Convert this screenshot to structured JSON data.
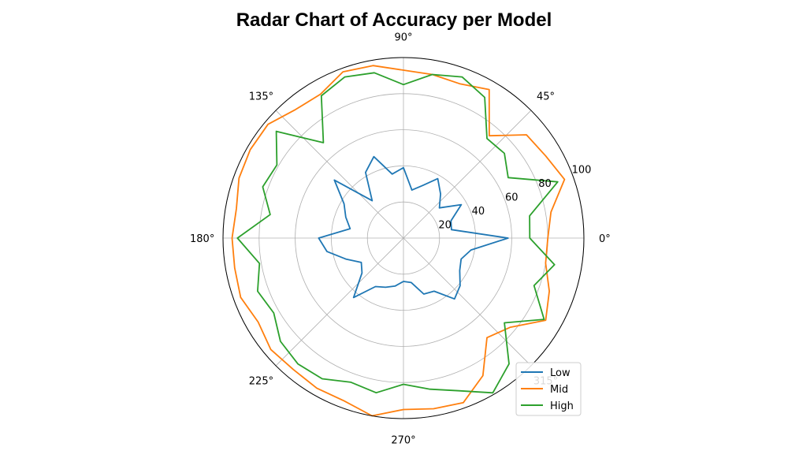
{
  "chart_data": {
    "type": "radar",
    "title": "Radar Chart of Accuracy per Model",
    "angle_ticks": [
      "0°",
      "45°",
      "90°",
      "135°",
      "180°",
      "225°",
      "270°",
      "315°"
    ],
    "radial_ticks": [
      "20",
      "40",
      "60",
      "80",
      "100"
    ],
    "rlim": [
      0,
      100
    ],
    "grid": true,
    "legend_position": "lower-right",
    "angles_deg": [
      0,
      10,
      20,
      30,
      40,
      50,
      60,
      70,
      80,
      90,
      100,
      110,
      120,
      130,
      140,
      150,
      160,
      170,
      180,
      190,
      200,
      210,
      220,
      230,
      240,
      250,
      260,
      270,
      280,
      290,
      300,
      310,
      320,
      330,
      340,
      350
    ],
    "series": [
      {
        "name": "Low",
        "color": "#1f77b4",
        "values": [
          58,
          27,
          28,
          37,
          26,
          32,
          38,
          31,
          27,
          39,
          36,
          48,
          42,
          27,
          50,
          38,
          34,
          30,
          47,
          43,
          34,
          27,
          30,
          43,
          31,
          29,
          27,
          24,
          25,
          33,
          34,
          44,
          41,
          36,
          34,
          38
        ]
      },
      {
        "name": "Mid",
        "color": "#ff7f0e",
        "values": [
          80,
          83,
          95,
          91,
          89,
          74,
          95,
          91,
          92,
          93,
          97,
          98,
          92,
          93,
          98,
          98,
          97,
          94,
          95,
          95,
          96,
          93,
          96,
          95,
          96,
          96,
          100,
          95,
          96,
          97,
          88,
          72,
          77,
          91,
          86,
          80
        ]
      },
      {
        "name": "High",
        "color": "#2ca02c",
        "values": [
          70,
          71,
          91,
          67,
          73,
          72,
          90,
          95,
          92,
          85,
          93,
          95,
          91,
          69,
          92,
          81,
          83,
          75,
          92,
          81,
          86,
          83,
          89,
          91,
          90,
          85,
          87,
          81,
          85,
          90,
          99,
          91,
          73,
          90,
          77,
          85
        ]
      }
    ]
  }
}
